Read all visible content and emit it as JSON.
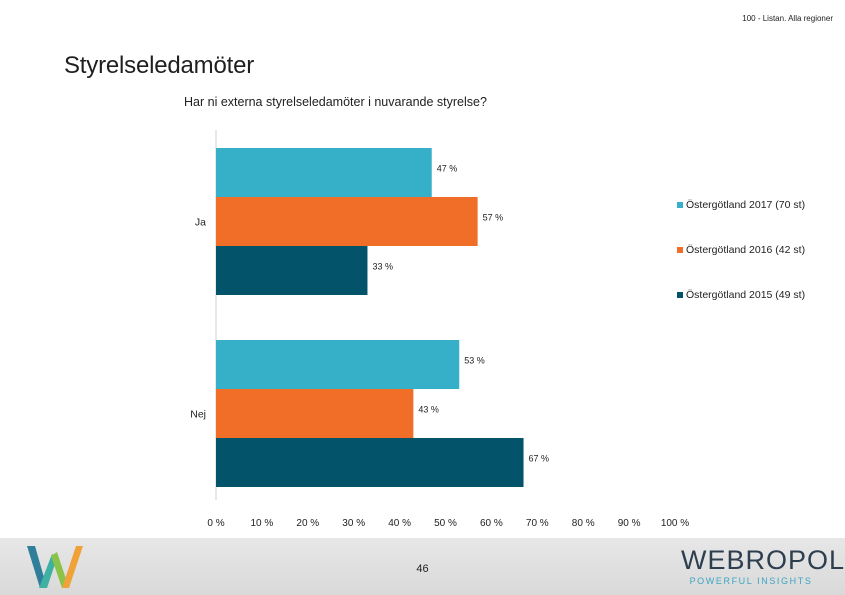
{
  "header": {
    "note": "100 - Listan. Alla regioner"
  },
  "page": {
    "title": "Styrelseledamöter",
    "number": "46"
  },
  "brand": {
    "name": "WEBᴿᴼPOL",
    "name_plain": "WEBROPOL",
    "tagline": "POWERFUL INSIGHTS"
  },
  "colors": {
    "s2017": "#35b0c8",
    "s2016": "#f06e28",
    "s2015": "#03536a"
  },
  "chart_data": {
    "type": "bar",
    "orientation": "horizontal",
    "title": "Har ni externa styrelseledamöter i nuvarande styrelse?",
    "categories": [
      "Ja",
      "Nej"
    ],
    "series": [
      {
        "name": "Östergötland 2017 (70 st)",
        "values": [
          47,
          53
        ],
        "labels": [
          "47 %",
          "53 %"
        ],
        "color": "#35b0c8"
      },
      {
        "name": "Östergötland 2016 (42 st)",
        "values": [
          57,
          43
        ],
        "labels": [
          "57 %",
          "43 %"
        ],
        "color": "#f06e28"
      },
      {
        "name": "Östergötland 2015 (49 st)",
        "values": [
          33,
          67
        ],
        "labels": [
          "33 %",
          "67 %"
        ],
        "color": "#03536a"
      }
    ],
    "xlim": [
      0,
      100
    ],
    "xticks": [
      "0 %",
      "10 %",
      "20 %",
      "30 %",
      "40 %",
      "50 %",
      "60 %",
      "70 %",
      "80 %",
      "90 %",
      "100 %"
    ],
    "grid": false,
    "legend_position": "right"
  }
}
